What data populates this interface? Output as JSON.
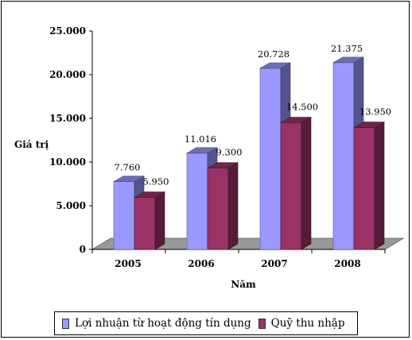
{
  "colors": {
    "series1": "#9999ff",
    "series2": "#993366",
    "floor": "#999999",
    "background": "#ffffff"
  },
  "chart_data": {
    "type": "bar",
    "style": "3d-clustered",
    "categories": [
      "2005",
      "2006",
      "2007",
      "2008"
    ],
    "series": [
      {
        "name": "Lợi nhuận từ hoạt động tín dụng",
        "values": [
          7760,
          11016,
          20728,
          21375
        ],
        "labels": [
          "7.760",
          "11.016",
          "20.728",
          "21.375"
        ]
      },
      {
        "name": "Quỹ thu nhập",
        "values": [
          5950,
          9300,
          14500,
          13950
        ],
        "labels": [
          "5.950",
          "9.300",
          "14.500",
          "13.950"
        ]
      }
    ],
    "y_ticks": [
      0,
      5000,
      10000,
      15000,
      20000,
      25000
    ],
    "y_tick_labels": [
      "0",
      "5.000",
      "10.000",
      "15.000",
      "20.000",
      "25.000"
    ],
    "ylim": [
      0,
      25000
    ],
    "xlabel": "Năm",
    "ylabel": "Giá trị",
    "grid": false,
    "legend_position": "bottom"
  }
}
